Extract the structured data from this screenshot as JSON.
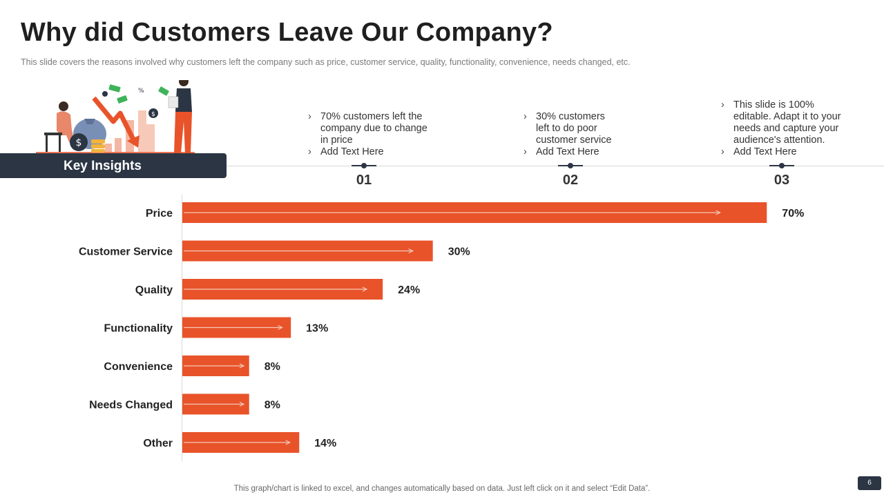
{
  "slide": {
    "title": "Why did Customers Leave Our Company?",
    "subtitle": "This slide covers the reasons involved  why customers left the company such as price, customer service, quality, functionality, convenience,  needs changed, etc.",
    "key_insights_label": "Key Insights",
    "footer": "This graph/chart is linked to excel,  and changes automatically based on data. Just left click on it and select “Edit Data”.",
    "page_number": "6"
  },
  "insights": [
    {
      "number": "01",
      "bullets": [
        "70% customers left the company due to change in price",
        "Add Text Here"
      ]
    },
    {
      "number": "02",
      "bullets": [
        "30% customers left to do poor customer service",
        "Add Text Here"
      ]
    },
    {
      "number": "03",
      "bullets": [
        "This slide is 100% editable. Adapt it to your needs and capture your audience's attention.",
        "Add Text Here"
      ]
    }
  ],
  "colors": {
    "bar": "#e8532a",
    "accent_dark": "#2b3544",
    "arrow": "#f6c9b8"
  },
  "chart_data": {
    "type": "bar",
    "orientation": "horizontal",
    "categories": [
      "Price",
      "Customer Service",
      "Quality",
      "Functionality",
      "Convenience",
      "Needs Changed",
      "Other"
    ],
    "values": [
      70,
      30,
      24,
      13,
      8,
      8,
      14
    ],
    "value_labels": [
      "70%",
      "30%",
      "24%",
      "13%",
      "8%",
      "8%",
      "14%"
    ],
    "unit": "%",
    "xlim": [
      0,
      100
    ],
    "title": "",
    "xlabel": "",
    "ylabel": "",
    "grid": false
  }
}
